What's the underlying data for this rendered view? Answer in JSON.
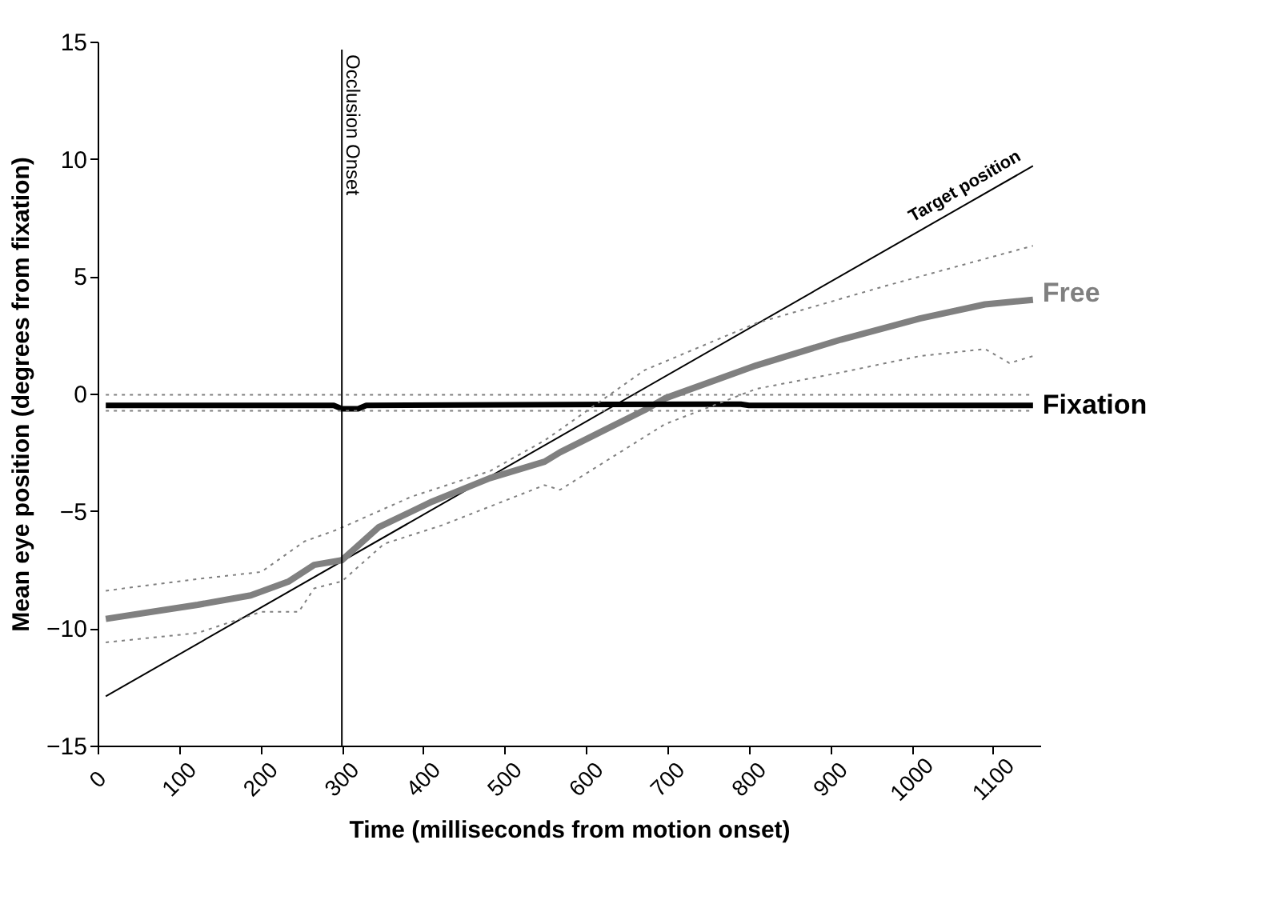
{
  "chart_data": {
    "type": "line",
    "xlabel": "Time (milliseconds from motion onset)",
    "ylabel": "Mean eye position (degrees from fixation)",
    "xlim": [
      0,
      1158
    ],
    "xticks": [
      0,
      100,
      200,
      300,
      400,
      500,
      600,
      700,
      800,
      900,
      1000,
      1100
    ],
    "ylim": [
      -15,
      15
    ],
    "yticks": [
      -15,
      -10,
      -5,
      0,
      5,
      10,
      15
    ],
    "grid": false,
    "legend": false,
    "marker": "none",
    "ref_lines": [
      {
        "axis": "x",
        "value": 300,
        "label": "Occlusion Onset",
        "color": "#000000"
      }
    ],
    "series": [
      {
        "name": "Target position",
        "color": "#000000",
        "line_style": "solid",
        "x": [
          10,
          1149
        ],
        "values": [
          -12.9,
          9.7
        ]
      },
      {
        "name": "Free",
        "color": "#808080",
        "line_style": "solid",
        "x": [
          10,
          123,
          188,
          235,
          266,
          300,
          345,
          411,
          482,
          549,
          568,
          672,
          697,
          809,
          913,
          1010,
          1090,
          1149
        ],
        "values": [
          -9.6,
          -9.0,
          -8.6,
          -8.0,
          -7.3,
          -7.1,
          -5.7,
          -4.6,
          -3.6,
          -2.9,
          -2.5,
          -0.7,
          -0.2,
          1.2,
          2.3,
          3.2,
          3.8,
          4.0
        ]
      },
      {
        "name": "Fixation",
        "color": "#000000",
        "line_style": "solid",
        "x": [
          10,
          290,
          300,
          320,
          330,
          750,
          790,
          800,
          1149
        ],
        "values": [
          -0.5,
          -0.5,
          -0.65,
          -0.65,
          -0.5,
          -0.45,
          -0.45,
          -0.5,
          -0.5
        ]
      },
      {
        "color": "#808080",
        "line_style": "dotted",
        "x": [
          10,
          123,
          201,
          254,
          294,
          385,
          482,
          549,
          672,
          809,
          969,
          1149
        ],
        "values": [
          -8.4,
          -7.9,
          -7.6,
          -6.3,
          -5.8,
          -4.4,
          -3.3,
          -2.0,
          1.0,
          3.0,
          4.6,
          6.3
        ]
      },
      {
        "color": "#808080",
        "line_style": "dotted",
        "x": [
          10,
          123,
          201,
          247,
          266,
          300,
          352,
          424,
          549,
          568,
          697,
          809,
          913,
          1010,
          1090,
          1120,
          1149
        ],
        "values": [
          -10.6,
          -10.2,
          -9.3,
          -9.3,
          -8.3,
          -8.0,
          -6.4,
          -5.6,
          -3.9,
          -4.1,
          -1.3,
          0.2,
          0.9,
          1.6,
          1.9,
          1.3,
          1.6
        ]
      },
      {
        "color": "#808080",
        "line_style": "dotted",
        "x": [
          10,
          1149
        ],
        "values": [
          -0.05,
          -0.05
        ]
      },
      {
        "color": "#808080",
        "line_style": "dotted",
        "x": [
          10,
          1149
        ],
        "values": [
          -0.73,
          -0.73
        ]
      }
    ]
  }
}
